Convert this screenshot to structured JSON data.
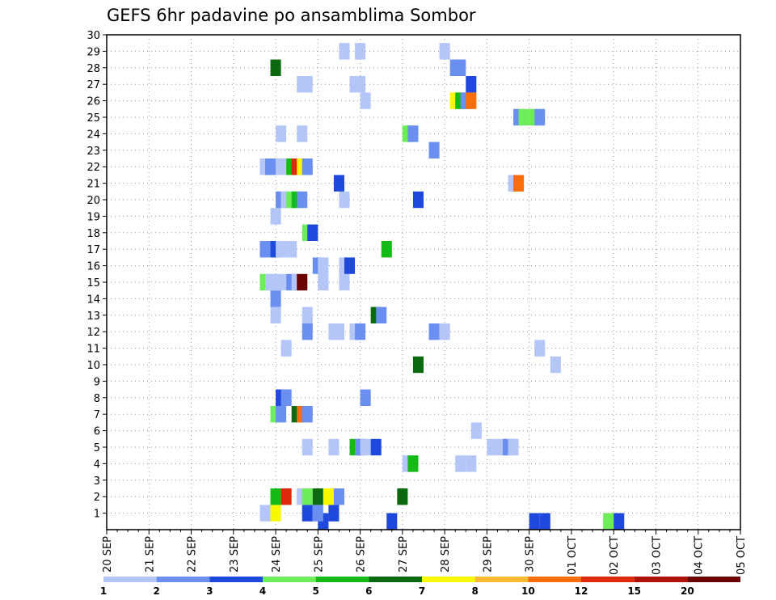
{
  "chart_data": {
    "type": "heatmap",
    "title": "GEFS 6hr padavine po ansamblima Sombor",
    "x_tick_labels": [
      "20 SEP",
      "21 SEP",
      "22 SEP",
      "23 SEP",
      "24 SEP",
      "25 SEP",
      "26 SEP",
      "27 SEP",
      "28 SEP",
      "29 SEP",
      "30 SEP",
      "01 OCT",
      "02 OCT",
      "03 OCT",
      "04 OCT",
      "05 OCT"
    ],
    "y_tick_labels": [
      "1",
      "2",
      "3",
      "4",
      "5",
      "6",
      "7",
      "8",
      "9",
      "10",
      "11",
      "12",
      "13",
      "14",
      "15",
      "16",
      "17",
      "18",
      "19",
      "20",
      "21",
      "22",
      "23",
      "24",
      "25",
      "26",
      "27",
      "28",
      "29",
      "30"
    ],
    "xlim": [
      0,
      60
    ],
    "ylim": [
      0,
      30
    ],
    "grid": true,
    "legend": {
      "placement": "bottom",
      "labels": [
        "1",
        "2",
        "3",
        "4",
        "5",
        "6",
        "7",
        "8",
        "10",
        "12",
        "15",
        "20"
      ],
      "colors": [
        "#b3c6f7",
        "#6a8ff0",
        "#1f48dc",
        "#6ded5a",
        "#14bb14",
        "#0b6a10",
        "#f8f800",
        "#fab930",
        "#fa6e0a",
        "#dd2a0a",
        "#b01208",
        "#6b0204"
      ]
    },
    "cells": [
      {
        "x": 20.0,
        "y": 0.0,
        "c": "#1f48dc"
      },
      {
        "x": 26.5,
        "y": 0.0,
        "c": "#1f48dc"
      },
      {
        "x": 40.0,
        "y": 0.0,
        "c": "#1f48dc"
      },
      {
        "x": 41.0,
        "y": 0.0,
        "c": "#1f48dc"
      },
      {
        "x": 47.0,
        "y": 0.0,
        "c": "#6ded5a"
      },
      {
        "x": 48.0,
        "y": 0.0,
        "c": "#1f48dc"
      },
      {
        "x": 14.5,
        "y": 0.5,
        "c": "#b3c6f7"
      },
      {
        "x": 15.5,
        "y": 0.5,
        "c": "#f8f800"
      },
      {
        "x": 18.5,
        "y": 0.5,
        "c": "#1f48dc"
      },
      {
        "x": 19.5,
        "y": 0.5,
        "c": "#6a8ff0"
      },
      {
        "x": 21.0,
        "y": 0.5,
        "c": "#1f48dc"
      },
      {
        "x": 15.5,
        "y": 1.5,
        "c": "#14bb14"
      },
      {
        "x": 16.5,
        "y": 1.5,
        "c": "#dd2a0a"
      },
      {
        "x": 18.0,
        "y": 1.5,
        "c": "#b3c6f7"
      },
      {
        "x": 18.5,
        "y": 1.5,
        "c": "#6ded5a"
      },
      {
        "x": 19.5,
        "y": 1.5,
        "c": "#0b6a10"
      },
      {
        "x": 20.5,
        "y": 1.5,
        "c": "#f8f800"
      },
      {
        "x": 21.5,
        "y": 1.5,
        "c": "#6a8ff0"
      },
      {
        "x": 27.5,
        "y": 1.5,
        "c": "#0b6a10"
      },
      {
        "x": 28.0,
        "y": 3.5,
        "c": "#b3c6f7"
      },
      {
        "x": 28.5,
        "y": 3.5,
        "c": "#14bb14"
      },
      {
        "x": 33.0,
        "y": 3.5,
        "c": "#b3c6f7"
      },
      {
        "x": 34.0,
        "y": 3.5,
        "c": "#b3c6f7"
      },
      {
        "x": 18.5,
        "y": 4.5,
        "c": "#b3c6f7"
      },
      {
        "x": 21.0,
        "y": 4.5,
        "c": "#b3c6f7"
      },
      {
        "x": 23.0,
        "y": 4.5,
        "c": "#14bb14"
      },
      {
        "x": 23.5,
        "y": 4.5,
        "c": "#6a8ff0"
      },
      {
        "x": 24.0,
        "y": 4.5,
        "c": "#b3c6f7"
      },
      {
        "x": 25.0,
        "y": 4.5,
        "c": "#1f48dc"
      },
      {
        "x": 36.0,
        "y": 4.5,
        "c": "#b3c6f7"
      },
      {
        "x": 37.0,
        "y": 4.5,
        "c": "#b3c6f7"
      },
      {
        "x": 37.5,
        "y": 4.5,
        "c": "#6a8ff0"
      },
      {
        "x": 38.0,
        "y": 4.5,
        "c": "#b3c6f7"
      },
      {
        "x": 34.5,
        "y": 5.5,
        "c": "#b3c6f7"
      },
      {
        "x": 15.5,
        "y": 6.5,
        "c": "#6ded5a"
      },
      {
        "x": 16.0,
        "y": 6.5,
        "c": "#6a8ff0"
      },
      {
        "x": 17.5,
        "y": 6.5,
        "c": "#0b6a10"
      },
      {
        "x": 18.0,
        "y": 6.5,
        "c": "#fa6e0a"
      },
      {
        "x": 18.5,
        "y": 6.5,
        "c": "#6a8ff0"
      },
      {
        "x": 16.0,
        "y": 7.5,
        "c": "#1f48dc"
      },
      {
        "x": 16.5,
        "y": 7.5,
        "c": "#6a8ff0"
      },
      {
        "x": 24.0,
        "y": 7.5,
        "c": "#6a8ff0"
      },
      {
        "x": 29.0,
        "y": 9.5,
        "c": "#0b6a10"
      },
      {
        "x": 42.0,
        "y": 9.5,
        "c": "#b3c6f7"
      },
      {
        "x": 16.5,
        "y": 10.5,
        "c": "#b3c6f7"
      },
      {
        "x": 40.5,
        "y": 10.5,
        "c": "#b3c6f7"
      },
      {
        "x": 18.5,
        "y": 11.5,
        "c": "#6a8ff0"
      },
      {
        "x": 21.0,
        "y": 11.5,
        "c": "#b3c6f7"
      },
      {
        "x": 21.5,
        "y": 11.5,
        "c": "#b3c6f7"
      },
      {
        "x": 23.0,
        "y": 11.5,
        "c": "#b3c6f7"
      },
      {
        "x": 23.5,
        "y": 11.5,
        "c": "#6a8ff0"
      },
      {
        "x": 30.5,
        "y": 11.5,
        "c": "#6a8ff0"
      },
      {
        "x": 31.5,
        "y": 11.5,
        "c": "#b3c6f7"
      },
      {
        "x": 15.5,
        "y": 12.5,
        "c": "#b3c6f7"
      },
      {
        "x": 18.5,
        "y": 12.5,
        "c": "#b3c6f7"
      },
      {
        "x": 25.0,
        "y": 12.5,
        "c": "#0b6a10"
      },
      {
        "x": 25.5,
        "y": 12.5,
        "c": "#6a8ff0"
      },
      {
        "x": 15.5,
        "y": 13.5,
        "c": "#6a8ff0"
      },
      {
        "x": 14.5,
        "y": 14.5,
        "c": "#6ded5a"
      },
      {
        "x": 15.0,
        "y": 14.5,
        "c": "#b3c6f7"
      },
      {
        "x": 16.0,
        "y": 14.5,
        "c": "#b3c6f7"
      },
      {
        "x": 17.0,
        "y": 14.5,
        "c": "#6a8ff0"
      },
      {
        "x": 17.5,
        "y": 14.5,
        "c": "#b3c6f7"
      },
      {
        "x": 18.0,
        "y": 14.5,
        "c": "#6b0204"
      },
      {
        "x": 20.0,
        "y": 14.5,
        "c": "#b3c6f7"
      },
      {
        "x": 22.0,
        "y": 14.5,
        "c": "#b3c6f7"
      },
      {
        "x": 19.5,
        "y": 15.5,
        "c": "#6a8ff0"
      },
      {
        "x": 20.0,
        "y": 15.5,
        "c": "#b3c6f7"
      },
      {
        "x": 22.0,
        "y": 15.5,
        "c": "#b3c6f7"
      },
      {
        "x": 22.5,
        "y": 15.5,
        "c": "#1f48dc"
      },
      {
        "x": 14.5,
        "y": 16.5,
        "c": "#6a8ff0"
      },
      {
        "x": 15.5,
        "y": 16.5,
        "c": "#1f48dc"
      },
      {
        "x": 16.0,
        "y": 16.5,
        "c": "#b3c6f7"
      },
      {
        "x": 17.0,
        "y": 16.5,
        "c": "#b3c6f7"
      },
      {
        "x": 26.0,
        "y": 16.5,
        "c": "#14bb14"
      },
      {
        "x": 18.5,
        "y": 17.5,
        "c": "#6ded5a"
      },
      {
        "x": 19.0,
        "y": 17.5,
        "c": "#1f48dc"
      },
      {
        "x": 15.5,
        "y": 18.5,
        "c": "#b3c6f7"
      },
      {
        "x": 16.0,
        "y": 19.5,
        "c": "#6a8ff0"
      },
      {
        "x": 16.5,
        "y": 19.5,
        "c": "#b3c6f7"
      },
      {
        "x": 17.0,
        "y": 19.5,
        "c": "#6ded5a"
      },
      {
        "x": 17.5,
        "y": 19.5,
        "c": "#14bb14"
      },
      {
        "x": 18.0,
        "y": 19.5,
        "c": "#6a8ff0"
      },
      {
        "x": 22.0,
        "y": 19.5,
        "c": "#b3c6f7"
      },
      {
        "x": 29.0,
        "y": 19.5,
        "c": "#1f48dc"
      },
      {
        "x": 21.5,
        "y": 20.5,
        "c": "#1f48dc"
      },
      {
        "x": 38.0,
        "y": 20.5,
        "c": "#b3c6f7"
      },
      {
        "x": 38.5,
        "y": 20.5,
        "c": "#fa6e0a"
      },
      {
        "x": 14.5,
        "y": 21.5,
        "c": "#b3c6f7"
      },
      {
        "x": 15.0,
        "y": 21.5,
        "c": "#6a8ff0"
      },
      {
        "x": 16.0,
        "y": 21.5,
        "c": "#b3c6f7"
      },
      {
        "x": 17.0,
        "y": 21.5,
        "c": "#14bb14"
      },
      {
        "x": 17.5,
        "y": 21.5,
        "c": "#dd2a0a"
      },
      {
        "x": 18.0,
        "y": 21.5,
        "c": "#f8f800"
      },
      {
        "x": 18.5,
        "y": 21.5,
        "c": "#6a8ff0"
      },
      {
        "x": 30.5,
        "y": 22.5,
        "c": "#6a8ff0"
      },
      {
        "x": 16.0,
        "y": 23.5,
        "c": "#b3c6f7"
      },
      {
        "x": 18.0,
        "y": 23.5,
        "c": "#b3c6f7"
      },
      {
        "x": 28.0,
        "y": 23.5,
        "c": "#6ded5a"
      },
      {
        "x": 28.5,
        "y": 23.5,
        "c": "#6a8ff0"
      },
      {
        "x": 38.5,
        "y": 24.5,
        "c": "#6a8ff0"
      },
      {
        "x": 39.0,
        "y": 24.5,
        "c": "#6ded5a"
      },
      {
        "x": 40.0,
        "y": 24.5,
        "c": "#6ded5a"
      },
      {
        "x": 40.5,
        "y": 24.5,
        "c": "#6a8ff0"
      },
      {
        "x": 24.0,
        "y": 25.5,
        "c": "#b3c6f7"
      },
      {
        "x": 32.5,
        "y": 25.5,
        "c": "#f8f800"
      },
      {
        "x": 33.0,
        "y": 25.5,
        "c": "#14bb14"
      },
      {
        "x": 33.5,
        "y": 25.5,
        "c": "#6a8ff0"
      },
      {
        "x": 34.0,
        "y": 25.5,
        "c": "#fa6e0a"
      },
      {
        "x": 18.0,
        "y": 26.5,
        "c": "#b3c6f7"
      },
      {
        "x": 18.5,
        "y": 26.5,
        "c": "#b3c6f7"
      },
      {
        "x": 23.0,
        "y": 26.5,
        "c": "#b3c6f7"
      },
      {
        "x": 23.5,
        "y": 26.5,
        "c": "#b3c6f7"
      },
      {
        "x": 34.0,
        "y": 26.5,
        "c": "#1f48dc"
      },
      {
        "x": 15.5,
        "y": 27.5,
        "c": "#0b6a10"
      },
      {
        "x": 32.5,
        "y": 27.5,
        "c": "#6a8ff0"
      },
      {
        "x": 33.0,
        "y": 27.5,
        "c": "#6a8ff0"
      },
      {
        "x": 22.0,
        "y": 28.5,
        "c": "#b3c6f7"
      },
      {
        "x": 23.5,
        "y": 28.5,
        "c": "#b3c6f7"
      },
      {
        "x": 31.5,
        "y": 28.5,
        "c": "#b3c6f7"
      }
    ]
  }
}
